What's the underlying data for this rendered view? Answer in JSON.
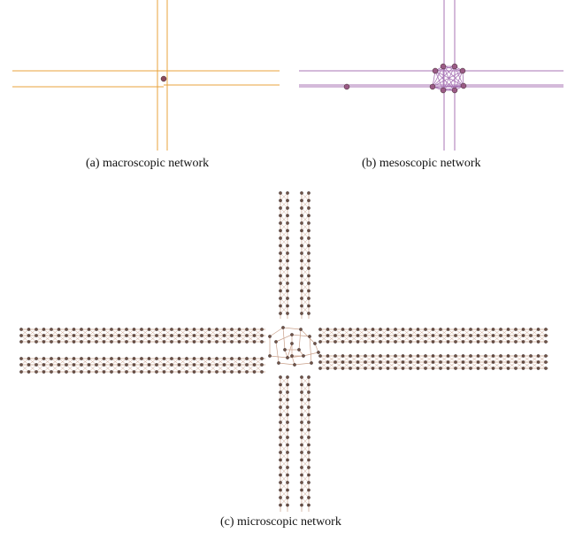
{
  "figure": {
    "panels": [
      {
        "id": "macro",
        "caption": "(a) macroscopic network",
        "edge_color": "#E8A33C",
        "node_color": "#8B4A5E"
      },
      {
        "id": "meso",
        "caption": "(b) mesoscopic network",
        "edge_color": "#A874B5",
        "node_color": "#9B5A86"
      },
      {
        "id": "micro",
        "caption": "(c) microscopic network",
        "edge_color": "#C9A08A",
        "node_color": "#6E5245"
      }
    ]
  }
}
